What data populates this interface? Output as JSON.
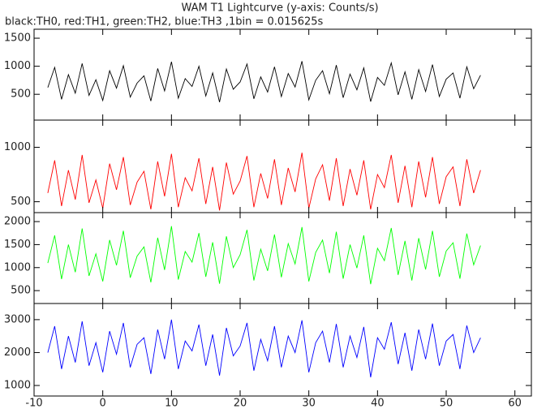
{
  "chart_data": [
    {
      "type": "line",
      "title": "WAM T1 Lightcurve (y-axis: Counts/s)",
      "subtitle": "black:TH0, red:TH1, green:TH2, blue:TH3 ,1bin = 0.015625s",
      "x": [
        -8,
        -7,
        -6,
        -5,
        -4,
        -3,
        -2,
        -1,
        0,
        1,
        2,
        3,
        4,
        5,
        6,
        7,
        8,
        9,
        10,
        11,
        12,
        13,
        14,
        15,
        16,
        17,
        18,
        19,
        20,
        21,
        22,
        23,
        24,
        25,
        26,
        27,
        28,
        29,
        30,
        31,
        32,
        33,
        34,
        35,
        36,
        37,
        38,
        39,
        40,
        41,
        42,
        43,
        44,
        45,
        46,
        47,
        48,
        49,
        50,
        51,
        52,
        53,
        54,
        55
      ],
      "series": [
        {
          "color": "#000000",
          "values": [
            620,
            980,
            410,
            850,
            520,
            1050,
            480,
            760,
            390,
            920,
            610,
            1010,
            450,
            700,
            830,
            380,
            960,
            560,
            1080,
            430,
            780,
            640,
            1000,
            470,
            880,
            360,
            950,
            590,
            720,
            1040,
            420,
            810,
            540,
            990,
            460,
            870,
            630,
            1090,
            400,
            750,
            920,
            510,
            1020,
            440,
            860,
            580,
            970,
            370,
            800,
            660,
            1060,
            490,
            900,
            410,
            940,
            550,
            1030,
            460,
            770,
            880,
            430,
            990,
            600,
            840
          ]
        }
      ],
      "xlim": [
        -10,
        62.4
      ],
      "xticks": [
        -10,
        0,
        10,
        20,
        30,
        40,
        50,
        60
      ],
      "ylim": [
        40,
        1660
      ],
      "yticks": [
        500,
        1000,
        1500
      ]
    },
    {
      "type": "line",
      "x": [
        -8,
        -7,
        -6,
        -5,
        -4,
        -3,
        -2,
        -1,
        0,
        1,
        2,
        3,
        4,
        5,
        6,
        7,
        8,
        9,
        10,
        11,
        12,
        13,
        14,
        15,
        16,
        17,
        18,
        19,
        20,
        21,
        22,
        23,
        24,
        25,
        26,
        27,
        28,
        29,
        30,
        31,
        32,
        33,
        34,
        35,
        36,
        37,
        38,
        39,
        40,
        41,
        42,
        43,
        44,
        45,
        46,
        47,
        48,
        49,
        50,
        51,
        52,
        53,
        54,
        55
      ],
      "series": [
        {
          "color": "#ff0000",
          "values": [
            580,
            880,
            460,
            790,
            520,
            930,
            490,
            700,
            440,
            850,
            610,
            910,
            470,
            680,
            780,
            430,
            870,
            550,
            940,
            450,
            720,
            600,
            900,
            480,
            820,
            420,
            860,
            570,
            690,
            920,
            450,
            760,
            530,
            890,
            470,
            810,
            590,
            950,
            440,
            710,
            840,
            510,
            900,
            460,
            800,
            560,
            880,
            430,
            750,
            630,
            930,
            490,
            830,
            450,
            870,
            540,
            910,
            480,
            730,
            820,
            460,
            890,
            580,
            790
          ]
        }
      ],
      "xlim": [
        -10,
        62.4
      ],
      "xticks": [
        -10,
        0,
        10,
        20,
        30,
        40,
        50,
        60
      ],
      "ylim": [
        400,
        1250
      ],
      "yticks": [
        500,
        1000
      ]
    },
    {
      "type": "line",
      "x": [
        -8,
        -7,
        -6,
        -5,
        -4,
        -3,
        -2,
        -1,
        0,
        1,
        2,
        3,
        4,
        5,
        6,
        7,
        8,
        9,
        10,
        11,
        12,
        13,
        14,
        15,
        16,
        17,
        18,
        19,
        20,
        21,
        22,
        23,
        24,
        25,
        26,
        27,
        28,
        29,
        30,
        31,
        32,
        33,
        34,
        35,
        36,
        37,
        38,
        39,
        40,
        41,
        42,
        43,
        44,
        45,
        46,
        47,
        48,
        49,
        50,
        51,
        52,
        53,
        54,
        55
      ],
      "series": [
        {
          "color": "#00ff00",
          "values": [
            1100,
            1700,
            750,
            1500,
            900,
            1850,
            820,
            1300,
            700,
            1600,
            1050,
            1800,
            780,
            1250,
            1450,
            680,
            1650,
            950,
            1900,
            740,
            1350,
            1120,
            1750,
            800,
            1550,
            650,
            1680,
            1000,
            1280,
            1820,
            720,
            1400,
            930,
            1720,
            790,
            1520,
            1080,
            1880,
            700,
            1330,
            1600,
            880,
            1780,
            760,
            1500,
            990,
            1700,
            640,
            1420,
            1150,
            1860,
            840,
            1580,
            720,
            1640,
            960,
            1800,
            800,
            1360,
            1540,
            760,
            1740,
            1060,
            1480
          ]
        }
      ],
      "xlim": [
        -10,
        62.4
      ],
      "xticks": [
        -10,
        0,
        10,
        20,
        30,
        40,
        50,
        60
      ],
      "ylim": [
        220,
        2195
      ],
      "yticks": [
        500,
        1000,
        1500,
        2000
      ]
    },
    {
      "type": "line",
      "x": [
        -8,
        -7,
        -6,
        -5,
        -4,
        -3,
        -2,
        -1,
        0,
        1,
        2,
        3,
        4,
        5,
        6,
        7,
        8,
        9,
        10,
        11,
        12,
        13,
        14,
        15,
        16,
        17,
        18,
        19,
        20,
        21,
        22,
        23,
        24,
        25,
        26,
        27,
        28,
        29,
        30,
        31,
        32,
        33,
        34,
        35,
        36,
        37,
        38,
        39,
        40,
        41,
        42,
        43,
        44,
        45,
        46,
        47,
        48,
        49,
        50,
        51,
        52,
        53,
        54,
        55
      ],
      "series": [
        {
          "color": "#0000ff",
          "values": [
            2000,
            2800,
            1500,
            2500,
            1700,
            2950,
            1600,
            2300,
            1400,
            2650,
            1950,
            2900,
            1550,
            2250,
            2450,
            1350,
            2700,
            1800,
            3000,
            1500,
            2350,
            2050,
            2850,
            1600,
            2550,
            1300,
            2750,
            1900,
            2200,
            2900,
            1450,
            2400,
            1750,
            2800,
            1550,
            2500,
            2000,
            2980,
            1400,
            2300,
            2650,
            1700,
            2870,
            1550,
            2500,
            1850,
            2780,
            1250,
            2450,
            2100,
            2920,
            1650,
            2600,
            1450,
            2700,
            1800,
            2880,
            1600,
            2350,
            2550,
            1500,
            2820,
            2000,
            2450
          ]
        }
      ],
      "xlim": [
        -10,
        62.4
      ],
      "xticks": [
        -10,
        0,
        10,
        20,
        30,
        40,
        50,
        60
      ],
      "ylim": [
        680,
        3490
      ],
      "yticks": [
        1000,
        2000,
        3000
      ],
      "xtick_labels": true
    }
  ]
}
